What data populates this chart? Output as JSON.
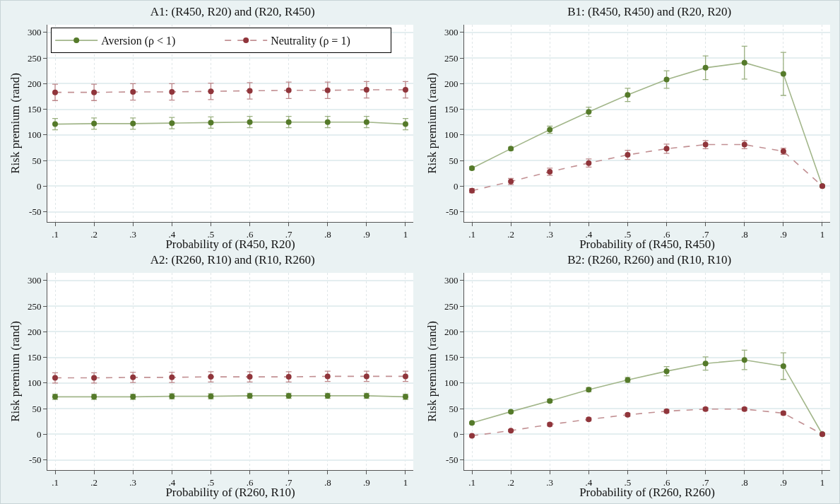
{
  "chart_data": [
    {
      "type": "line",
      "title": "A1: (R450, R20) and (R20, R450)",
      "xlabel": "Probability of (R450, R20)",
      "ylabel": "Risk premium (rand)",
      "x": [
        0.1,
        0.2,
        0.3,
        0.4,
        0.5,
        0.6,
        0.7,
        0.8,
        0.9,
        1
      ],
      "xlim": [
        0.08,
        1.02
      ],
      "xticks": [
        {
          "value": 0.1,
          "label": ".1"
        },
        {
          "value": 0.2,
          "label": ".2"
        },
        {
          "value": 0.3,
          "label": ".3"
        },
        {
          "value": 0.4,
          "label": ".4"
        },
        {
          "value": 0.5,
          "label": ".5"
        },
        {
          "value": 0.6,
          "label": ".6"
        },
        {
          "value": 0.7,
          "label": ".7"
        },
        {
          "value": 0.8,
          "label": ".8"
        },
        {
          "value": 0.9,
          "label": ".9"
        },
        {
          "value": 1,
          "label": "1"
        }
      ],
      "ylim": [
        -70,
        315
      ],
      "yticks": [
        -50,
        0,
        50,
        100,
        150,
        200,
        250,
        300
      ],
      "grid": true,
      "legend": "top",
      "marker": "circle",
      "series": [
        {
          "name": "Aversion (ρ < 1)",
          "color": "#557a2a",
          "line_style": "solid",
          "values": [
            121,
            122,
            122,
            123,
            124,
            125,
            125,
            125,
            125,
            121
          ],
          "errors": [
            11,
            11,
            11,
            11,
            11,
            11,
            11,
            11,
            11,
            11
          ]
        },
        {
          "name": "Neutrality (ρ = 1)",
          "color": "#90353b",
          "line_style": "dashed",
          "values": [
            183,
            183,
            184,
            184,
            185,
            186,
            187,
            187,
            188,
            188
          ],
          "errors": [
            16,
            16,
            16,
            16,
            16,
            16,
            16,
            16,
            16,
            16
          ]
        }
      ]
    },
    {
      "type": "line",
      "title": "B1: (R450, R450) and (R20, R20)",
      "xlabel": "Probability of (R450, R450)",
      "ylabel": "Risk premium (rand)",
      "x": [
        0.1,
        0.2,
        0.3,
        0.4,
        0.5,
        0.6,
        0.7,
        0.8,
        0.9,
        1
      ],
      "xlim": [
        0.08,
        1.02
      ],
      "xticks": [
        {
          "value": 0.1,
          "label": ".1"
        },
        {
          "value": 0.2,
          "label": ".2"
        },
        {
          "value": 0.3,
          "label": ".3"
        },
        {
          "value": 0.4,
          "label": ".4"
        },
        {
          "value": 0.5,
          "label": ".5"
        },
        {
          "value": 0.6,
          "label": ".6"
        },
        {
          "value": 0.7,
          "label": ".7"
        },
        {
          "value": 0.8,
          "label": ".8"
        },
        {
          "value": 0.9,
          "label": ".9"
        },
        {
          "value": 1,
          "label": "1"
        }
      ],
      "ylim": [
        -70,
        315
      ],
      "yticks": [
        -50,
        0,
        50,
        100,
        150,
        200,
        250,
        300
      ],
      "grid": true,
      "marker": "circle",
      "series": [
        {
          "color": "#557a2a",
          "line_style": "solid",
          "values": [
            35,
            73,
            110,
            145,
            178,
            208,
            231,
            241,
            219,
            0
          ],
          "errors": [
            3,
            3,
            7,
            9,
            13,
            17,
            23,
            32,
            42,
            0
          ]
        },
        {
          "color": "#90353b",
          "line_style": "dashed",
          "values": [
            -9,
            9,
            28,
            45,
            61,
            73,
            81,
            81,
            68,
            0
          ],
          "errors": [
            4,
            6,
            7,
            8,
            9,
            9,
            8,
            8,
            6,
            0
          ]
        }
      ]
    },
    {
      "type": "line",
      "title": "A2: (R260, R10) and (R10, R260)",
      "xlabel": "Probability of (R260, R10)",
      "ylabel": "Risk premium (rand)",
      "x": [
        0.1,
        0.2,
        0.3,
        0.4,
        0.5,
        0.6,
        0.7,
        0.8,
        0.9,
        1
      ],
      "xlim": [
        0.08,
        1.02
      ],
      "xticks": [
        {
          "value": 0.1,
          "label": ".1"
        },
        {
          "value": 0.2,
          "label": ".2"
        },
        {
          "value": 0.3,
          "label": ".3"
        },
        {
          "value": 0.4,
          "label": ".4"
        },
        {
          "value": 0.5,
          "label": ".5"
        },
        {
          "value": 0.6,
          "label": ".6"
        },
        {
          "value": 0.7,
          "label": ".7"
        },
        {
          "value": 0.8,
          "label": ".8"
        },
        {
          "value": 0.9,
          "label": ".9"
        },
        {
          "value": 1,
          "label": "1"
        }
      ],
      "ylim": [
        -70,
        315
      ],
      "yticks": [
        -50,
        0,
        50,
        100,
        150,
        200,
        250,
        300
      ],
      "grid": true,
      "marker": "circle",
      "series": [
        {
          "color": "#557a2a",
          "line_style": "solid",
          "values": [
            73,
            73,
            73,
            74,
            74,
            75,
            75,
            75,
            75,
            73
          ],
          "errors": [
            5,
            5,
            5,
            5,
            5,
            5,
            5,
            5,
            5,
            5
          ]
        },
        {
          "color": "#90353b",
          "line_style": "dashed",
          "values": [
            110,
            110,
            111,
            111,
            112,
            112,
            112,
            113,
            113,
            113
          ],
          "errors": [
            10,
            10,
            10,
            10,
            10,
            10,
            10,
            10,
            10,
            10
          ]
        }
      ]
    },
    {
      "type": "line",
      "title": "B2: (R260, R260) and (R10, R10)",
      "xlabel": "Probability of (R260, R260)",
      "ylabel": "Risk premium (rand)",
      "x": [
        0.1,
        0.2,
        0.3,
        0.4,
        0.5,
        0.6,
        0.7,
        0.8,
        0.9,
        1
      ],
      "xlim": [
        0.08,
        1.02
      ],
      "xticks": [
        {
          "value": 0.1,
          "label": ".1"
        },
        {
          "value": 0.2,
          "label": ".2"
        },
        {
          "value": 0.3,
          "label": ".3"
        },
        {
          "value": 0.4,
          "label": ".4"
        },
        {
          "value": 0.5,
          "label": ".5"
        },
        {
          "value": 0.6,
          "label": ".6"
        },
        {
          "value": 0.7,
          "label": ".7"
        },
        {
          "value": 0.8,
          "label": ".8"
        },
        {
          "value": 0.9,
          "label": ".9"
        },
        {
          "value": 1,
          "label": "1"
        }
      ],
      "ylim": [
        -70,
        315
      ],
      "yticks": [
        -50,
        0,
        50,
        100,
        150,
        200,
        250,
        300
      ],
      "grid": true,
      "marker": "circle",
      "series": [
        {
          "color": "#557a2a",
          "line_style": "solid",
          "values": [
            22,
            44,
            65,
            87,
            106,
            123,
            138,
            145,
            133,
            0
          ],
          "errors": [
            2,
            2,
            3,
            4,
            5,
            9,
            13,
            19,
            26,
            0
          ]
        },
        {
          "color": "#90353b",
          "line_style": "dashed",
          "values": [
            -3,
            7,
            19,
            29,
            38,
            45,
            49,
            49,
            41,
            0
          ],
          "errors": [
            2,
            2,
            3,
            3,
            3,
            3,
            3,
            3,
            3,
            0
          ]
        }
      ]
    }
  ]
}
